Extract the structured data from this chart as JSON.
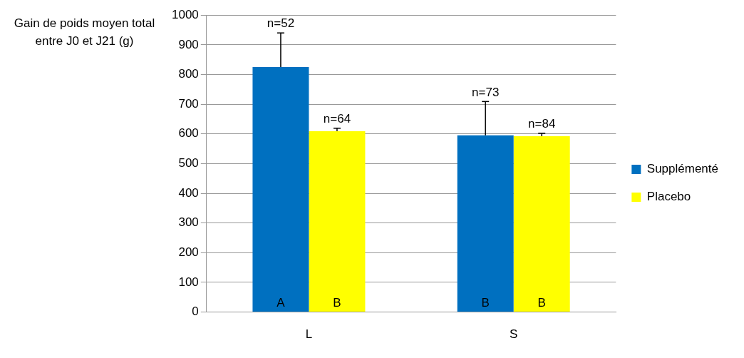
{
  "chart_data": {
    "type": "bar",
    "ylabel": "Gain de poids moyen total entre J0 et J21 (g)",
    "categories": [
      "L",
      "S"
    ],
    "series": [
      {
        "name": "Supplémenté",
        "color": "#0070c0",
        "values": [
          825,
          595
        ],
        "errors": [
          [
            825,
            940
          ],
          [
            595,
            709
          ]
        ]
      },
      {
        "name": "Placebo",
        "color": "#ffff00",
        "values": [
          609,
          592
        ],
        "errors": [
          [
            609,
            619
          ],
          [
            592,
            602
          ]
        ]
      }
    ],
    "ylim": [
      0,
      1000
    ],
    "yticks": [
      0,
      100,
      200,
      300,
      400,
      500,
      600,
      700,
      800,
      900,
      1000
    ],
    "grid": "y",
    "legend": "right",
    "annotations": [
      "n=52",
      "n=64",
      "n=73",
      "n=84",
      "A",
      "B",
      "B",
      "B"
    ]
  }
}
